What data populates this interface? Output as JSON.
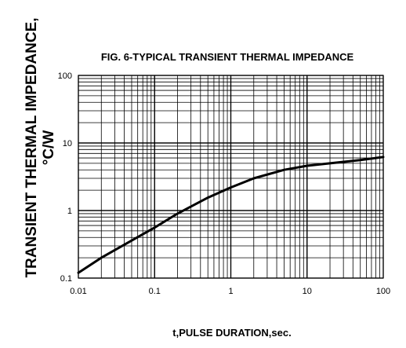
{
  "chart_data": {
    "type": "line",
    "title": "FIG. 6-TYPICAL TRANSIENT THERMAL IMPEDANCE",
    "ylabel_line1": "TRANSIENT THERMAL IMPEDANCE,",
    "ylabel_line2": "°C/W",
    "xlabel": "t,PULSE DURATION,sec.",
    "x_scale": "log",
    "y_scale": "log",
    "xlim": [
      0.01,
      100
    ],
    "ylim": [
      0.1,
      100
    ],
    "grid": true,
    "x_ticks": [
      "0.01",
      "0.1",
      "1",
      "10",
      "100"
    ],
    "y_ticks": [
      "0.1",
      "1",
      "10",
      "100"
    ],
    "series": [
      {
        "color": "#000000",
        "x": [
          0.01,
          0.02,
          0.05,
          0.1,
          0.2,
          0.5,
          1,
          2,
          5,
          10,
          20,
          50,
          100
        ],
        "y": [
          0.12,
          0.2,
          0.36,
          0.56,
          0.9,
          1.55,
          2.2,
          3.0,
          4.0,
          4.6,
          5.0,
          5.6,
          6.2
        ]
      }
    ]
  }
}
